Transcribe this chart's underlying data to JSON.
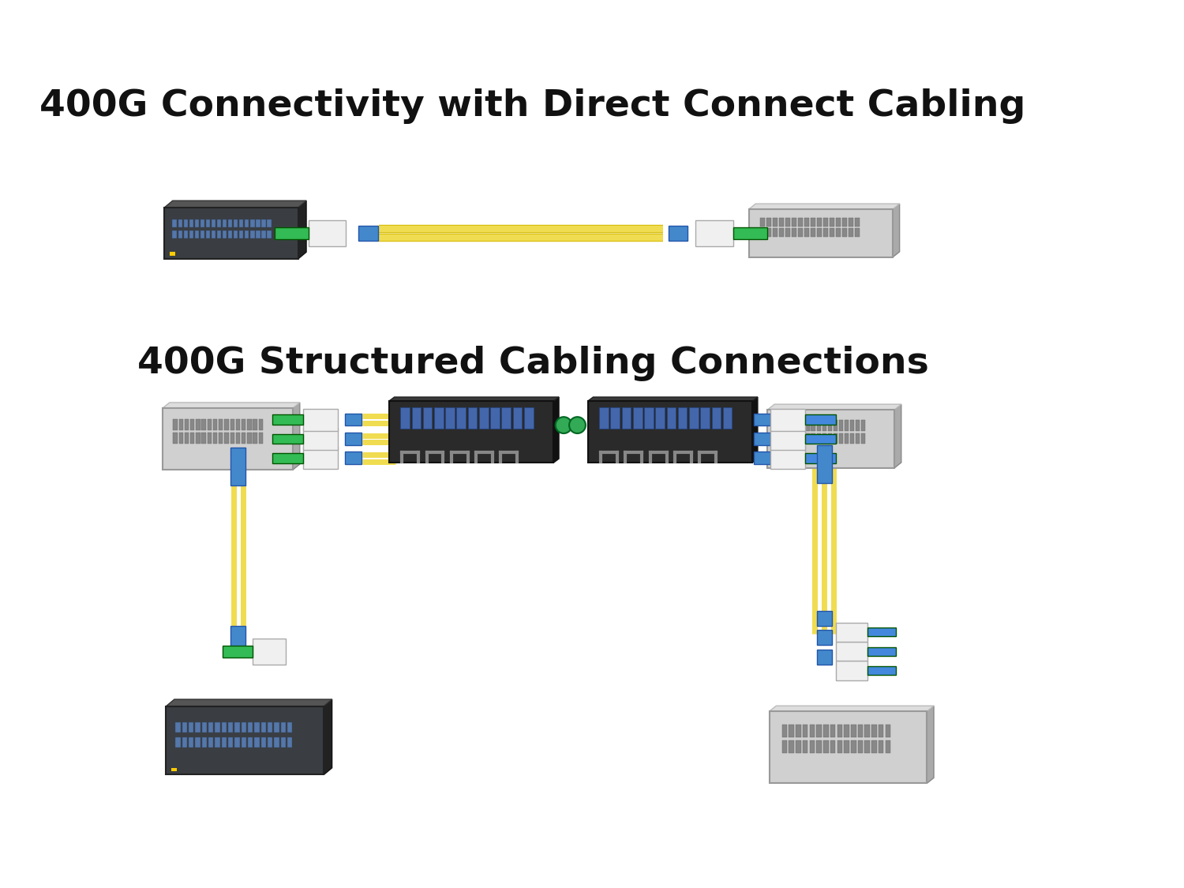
{
  "title1": "400G Connectivity with Direct Connect Cabling",
  "title2": "400G Structured Cabling Connections",
  "bg_color": "#ffffff",
  "title_fontsize": 34,
  "title_fontweight": "bold",
  "title_color": "#111111",
  "cable_yellow": "#f0dc50",
  "cable_yellow_dark": "#d4b800",
  "connector_blue": "#4488cc",
  "connector_green": "#33aa55",
  "switch_dark_body": "#3a3e42",
  "switch_dark_port": "#5577aa",
  "switch_light_body": "#d0d0d0",
  "switch_light_port": "#888888",
  "panel_body": "#2a2a2a",
  "panel_port": "#4466aa",
  "panel_handle": "#555555",
  "qsfp_body": "#e0e0e0",
  "qsfp_tab_green": "#33bb55",
  "qsfp_tab_blue": "#4488dd"
}
